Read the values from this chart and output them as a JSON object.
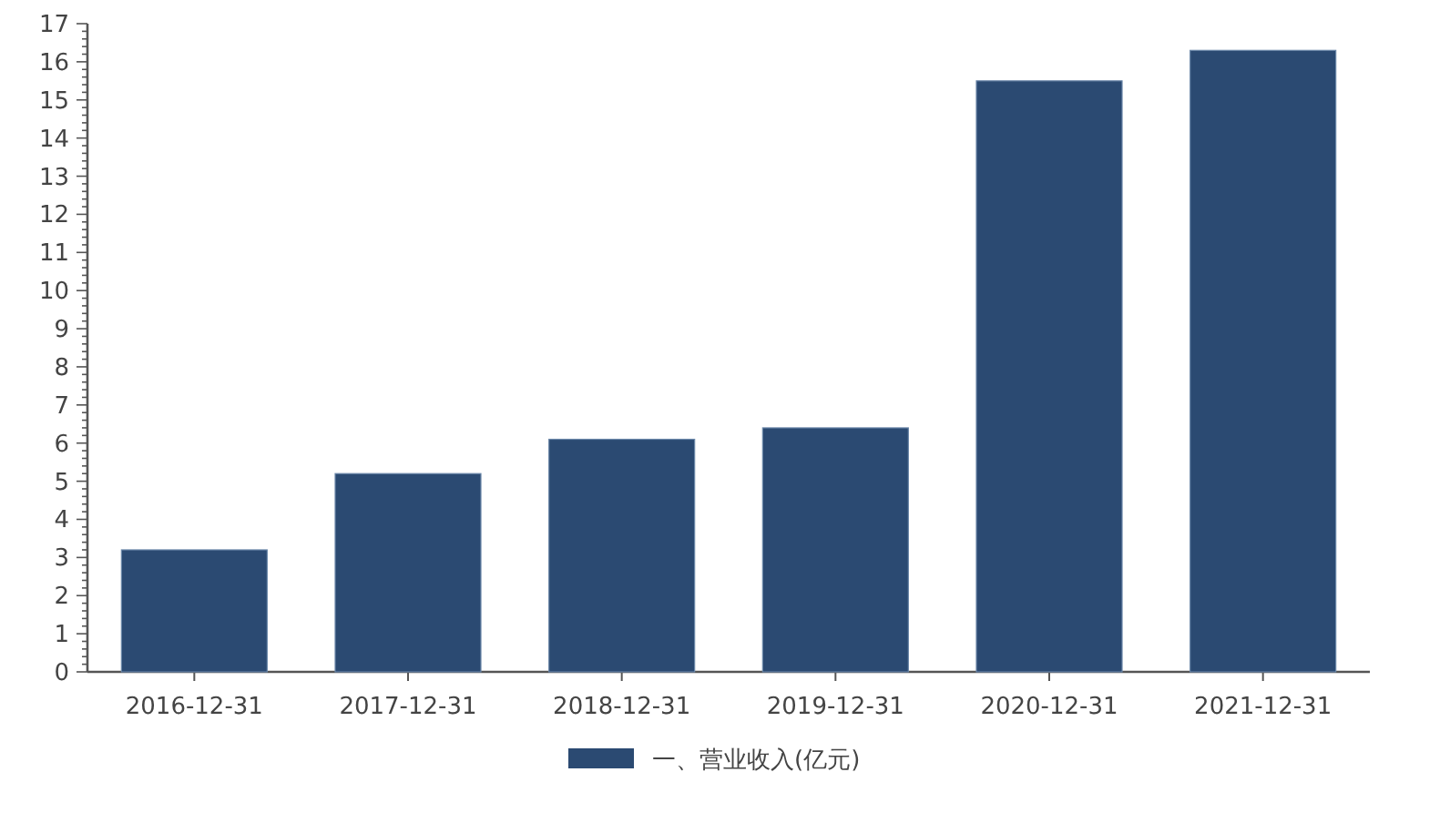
{
  "chart_data": {
    "type": "bar",
    "categories": [
      "2016-12-31",
      "2017-12-31",
      "2018-12-31",
      "2019-12-31",
      "2020-12-31",
      "2021-12-31"
    ],
    "series": [
      {
        "name": "一、营业收入(亿元)",
        "color": "#2b4a72",
        "values": [
          3.2,
          5.2,
          6.1,
          6.4,
          15.5,
          16.3
        ]
      }
    ],
    "ylim": [
      0,
      17
    ],
    "yticks": [
      0,
      1,
      2,
      3,
      4,
      5,
      6,
      7,
      8,
      9,
      10,
      11,
      12,
      13,
      14,
      15,
      16,
      17
    ],
    "grid": false,
    "legend": "bottom"
  }
}
